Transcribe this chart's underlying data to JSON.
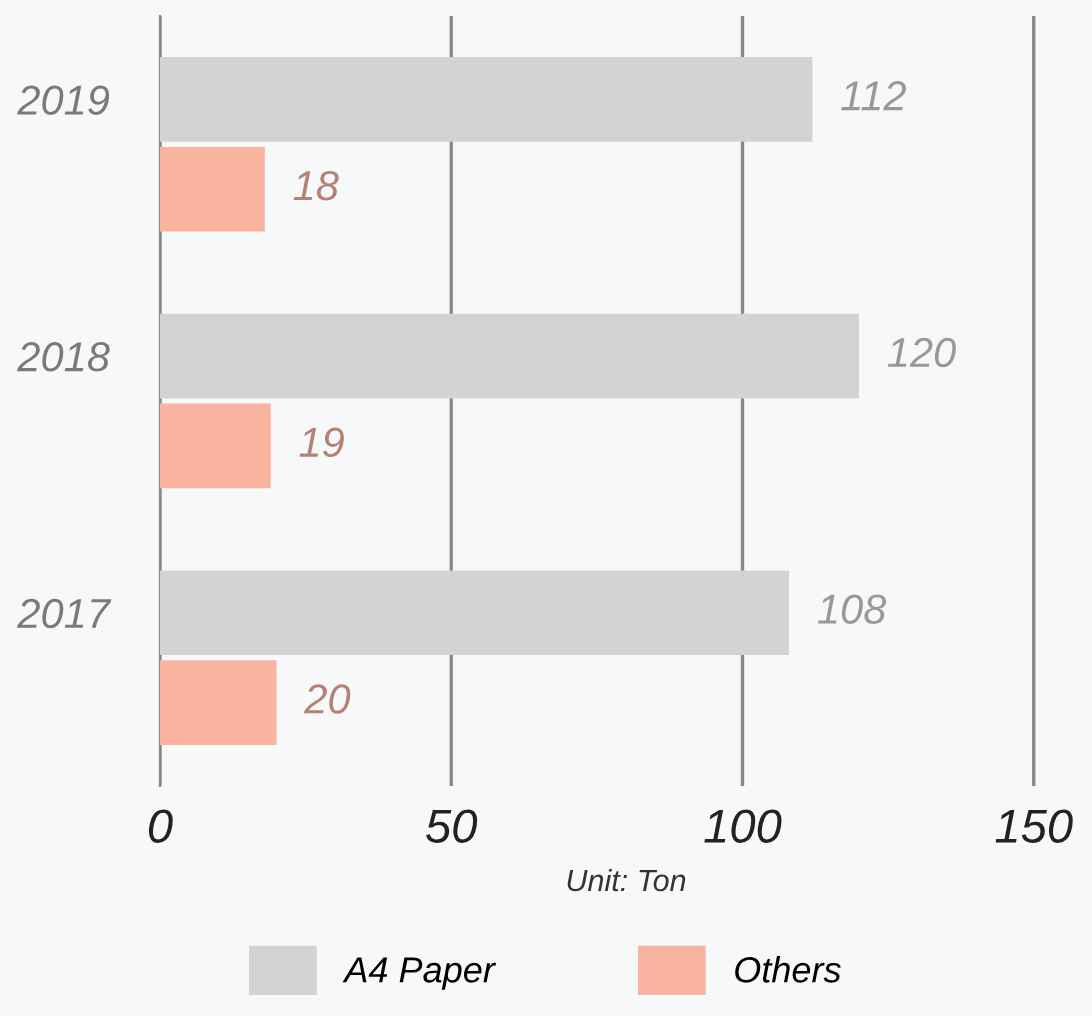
{
  "chart_data": {
    "type": "bar",
    "orientation": "horizontal",
    "categories": [
      "2019",
      "2018",
      "2017"
    ],
    "series": [
      {
        "name": "A4 Paper",
        "color": "#d3d3d5",
        "values": [
          112,
          120,
          108
        ]
      },
      {
        "name": "Others",
        "color": "#f9b4a0",
        "values": [
          18,
          19,
          20
        ]
      }
    ],
    "xlabel": "Unit: Ton",
    "xlim": [
      0,
      160
    ],
    "xticks": [
      0,
      50,
      100,
      150
    ],
    "grid": "x",
    "legend": "bottom",
    "data_labels": true
  }
}
